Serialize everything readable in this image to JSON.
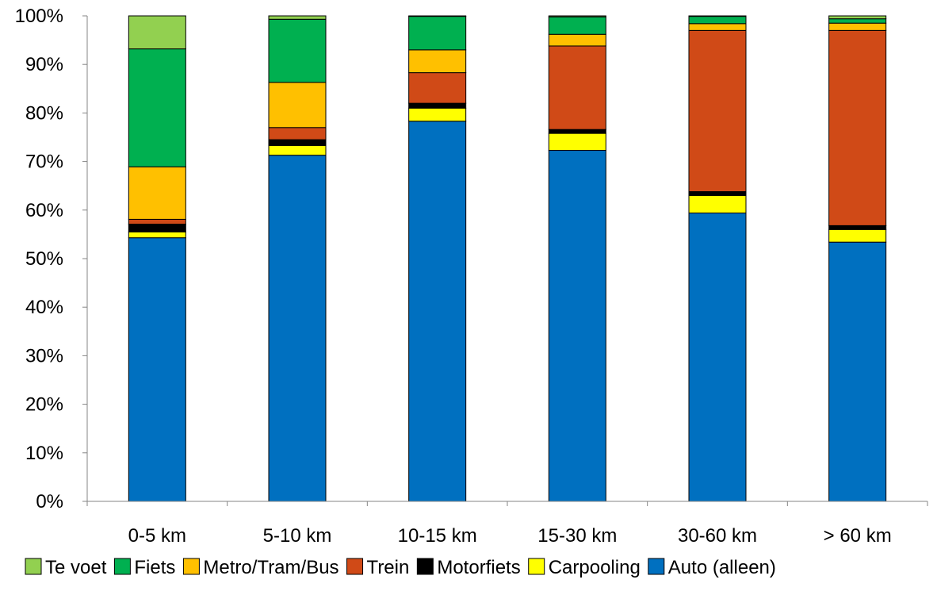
{
  "chart_data": {
    "type": "bar",
    "stacked": true,
    "percent_stacked": true,
    "title": "",
    "xlabel": "",
    "ylabel": "",
    "ylim": [
      0,
      100
    ],
    "y_ticks": [
      "0%",
      "10%",
      "20%",
      "30%",
      "40%",
      "50%",
      "60%",
      "70%",
      "80%",
      "90%",
      "100%"
    ],
    "categories": [
      "0-5 km",
      "5-10 km",
      "10-15 km",
      "15-30 km",
      "30-60 km",
      "> 60 km"
    ],
    "grid": false,
    "legend_position": "bottom",
    "series": [
      {
        "name": "Auto (alleen)",
        "color": "#0070C0",
        "values": [
          54.3,
          71.3,
          78.3,
          72.3,
          59.4,
          53.4
        ]
      },
      {
        "name": "Carpooling",
        "color": "#FFFF00",
        "values": [
          1.2,
          2.0,
          2.7,
          3.5,
          3.6,
          2.6
        ]
      },
      {
        "name": "Motorfiets",
        "color": "#000000",
        "values": [
          1.6,
          1.2,
          1.0,
          0.8,
          0.8,
          0.8
        ]
      },
      {
        "name": "Trein",
        "color": "#D04A17",
        "values": [
          1.0,
          2.5,
          6.3,
          17.2,
          33.2,
          40.2
        ]
      },
      {
        "name": "Metro/Tram/Bus",
        "color": "#FFC000",
        "values": [
          10.8,
          9.3,
          4.7,
          2.4,
          1.4,
          1.5
        ]
      },
      {
        "name": "Fiets",
        "color": "#00B050",
        "values": [
          24.3,
          13.0,
          6.9,
          3.6,
          1.5,
          0.9
        ]
      },
      {
        "name": "Te voet",
        "color": "#92D050",
        "values": [
          6.8,
          0.7,
          0.1,
          0.2,
          0.1,
          0.6
        ]
      }
    ],
    "legend_order": [
      "Te voet",
      "Fiets",
      "Metro/Tram/Bus",
      "Trein",
      "Motorfiets",
      "Carpooling",
      "Auto (alleen)"
    ]
  }
}
